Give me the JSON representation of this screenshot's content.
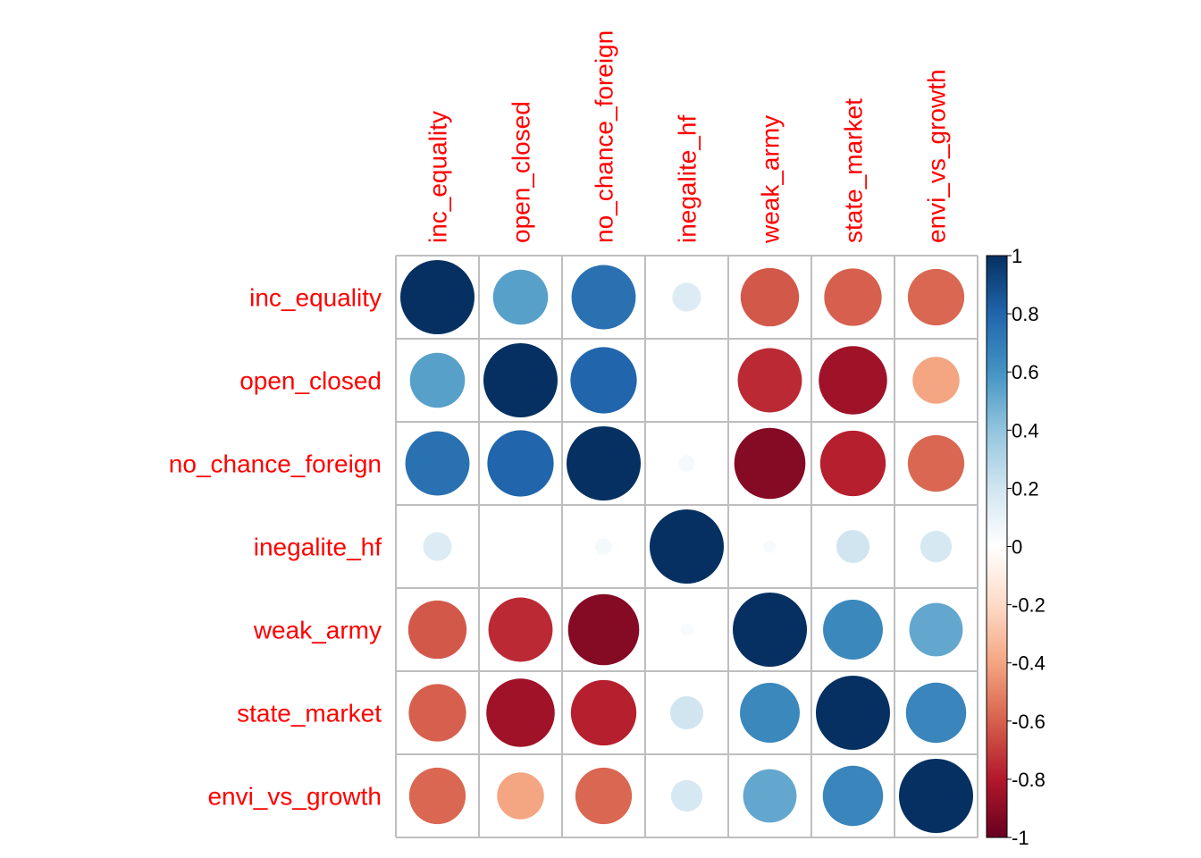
{
  "chart_data": {
    "type": "heatmap",
    "method": "circle",
    "variables": [
      "inc_equality",
      "open_closed",
      "no_chance_foreign",
      "inegalite_hf",
      "weak_army",
      "state_market",
      "envi_vs_growth"
    ],
    "matrix": [
      [
        1.0,
        0.55,
        0.75,
        0.15,
        -0.62,
        -0.6,
        -0.58
      ],
      [
        0.55,
        1.0,
        0.8,
        0.0,
        -0.75,
        -0.85,
        -0.4
      ],
      [
        0.75,
        0.8,
        1.0,
        0.05,
        -0.92,
        -0.78,
        -0.58
      ],
      [
        0.15,
        0.0,
        0.05,
        1.0,
        0.03,
        0.2,
        0.18
      ],
      [
        -0.62,
        -0.75,
        -0.92,
        0.03,
        1.0,
        0.65,
        0.52
      ],
      [
        -0.6,
        -0.85,
        -0.78,
        0.2,
        0.65,
        1.0,
        0.66
      ],
      [
        -0.58,
        -0.4,
        -0.58,
        0.18,
        0.52,
        0.66,
        1.0
      ]
    ],
    "colorbar": {
      "range": [
        -1,
        1
      ],
      "ticks": [
        "1",
        "0.8",
        "0.6",
        "0.4",
        "0.2",
        "0",
        "-0.2",
        "-0.4",
        "-0.6",
        "-0.8",
        "-1"
      ]
    },
    "label_color": "#ff0000",
    "palette": [
      "#67001f",
      "#b2182b",
      "#d6604d",
      "#f4a582",
      "#fddbc7",
      "#ffffff",
      "#d1e5f0",
      "#92c5de",
      "#4393c3",
      "#2166ac",
      "#053061"
    ],
    "grid_color": "#bebebe"
  }
}
